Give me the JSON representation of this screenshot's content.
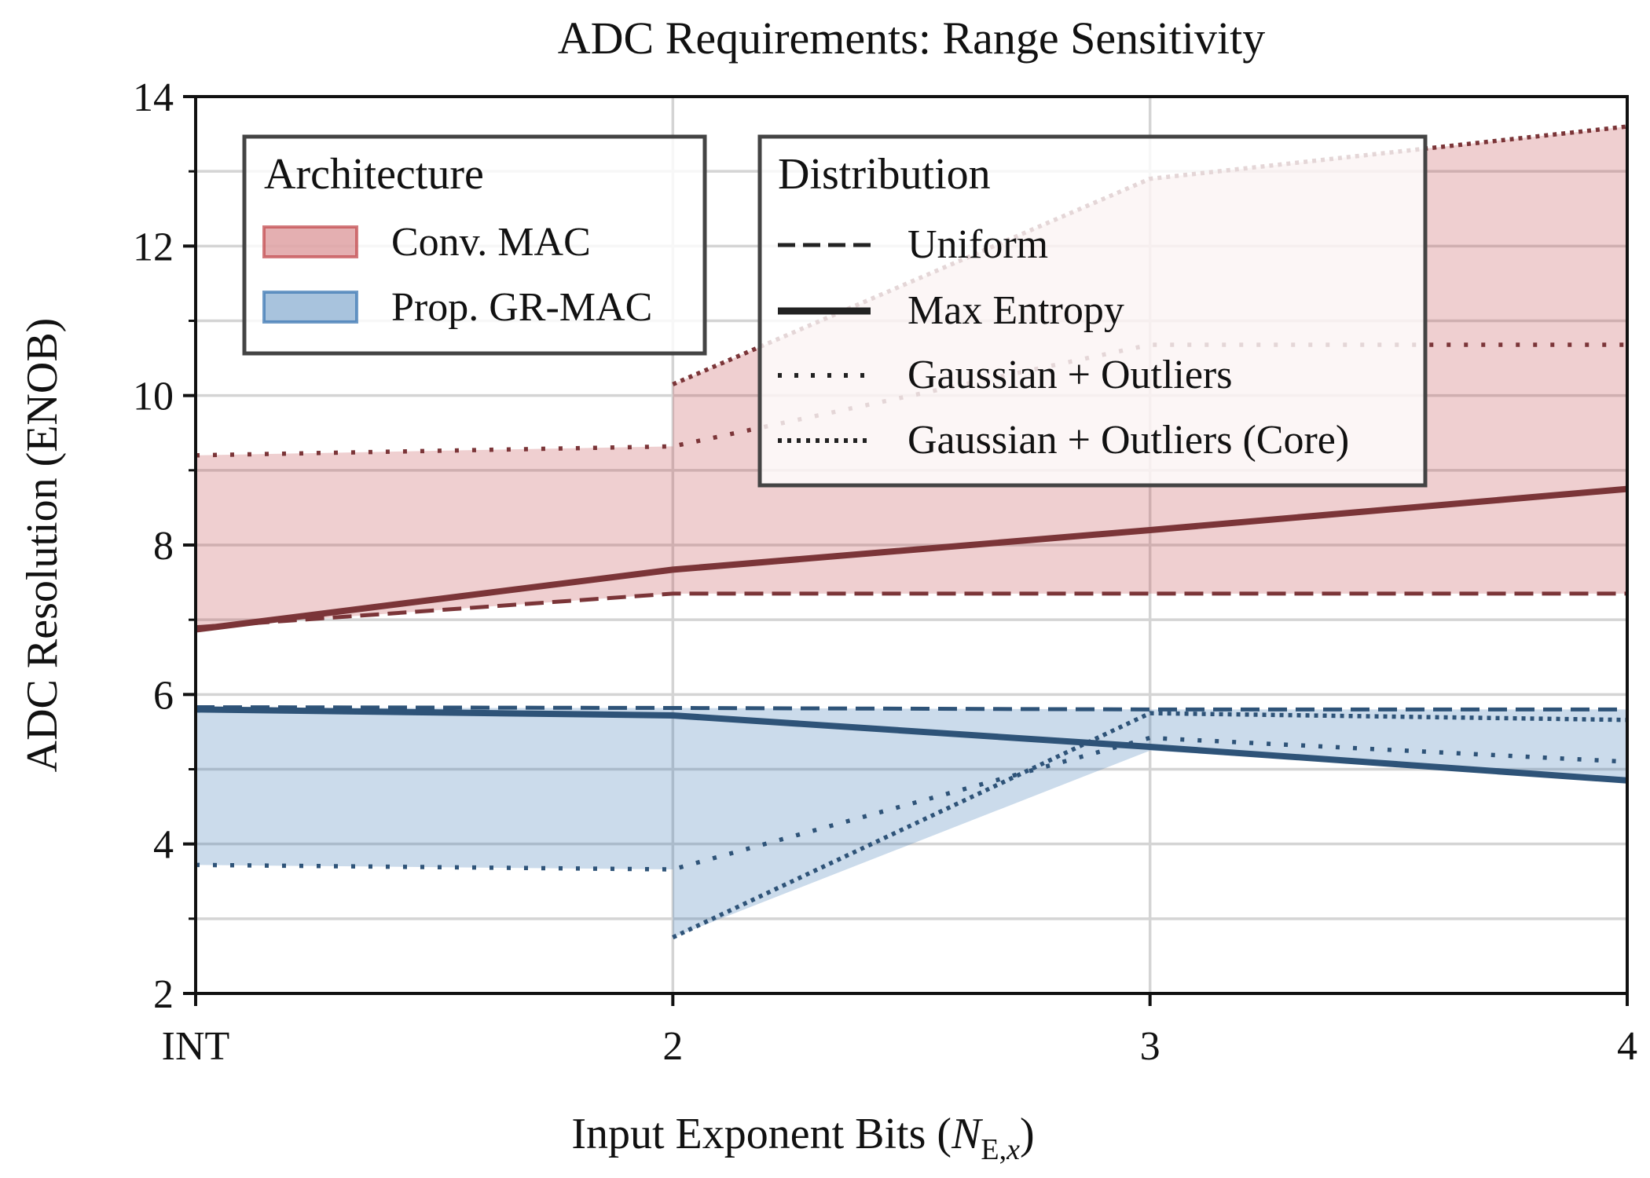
{
  "chart_data": {
    "type": "line",
    "title": "ADC Requirements: Range Sensitivity",
    "xlabel": {
      "main": "Input Exponent Bits (",
      "var": "N",
      "sub": "E,",
      "sub_var": "x",
      "close": ")"
    },
    "ylabel": "ADC Resolution (ENOB)",
    "categories": [
      "INT",
      "2",
      "3",
      "4"
    ],
    "x": [
      0,
      1,
      2,
      3
    ],
    "xlim": [
      0,
      3
    ],
    "ylim": [
      2,
      14
    ],
    "yticks": [
      "2",
      "4",
      "6",
      "8",
      "10",
      "12",
      "14"
    ],
    "ytick_values": [
      2,
      4,
      6,
      8,
      10,
      12,
      14
    ],
    "yminor": [
      3,
      5,
      7,
      9,
      11,
      13
    ],
    "grid": true,
    "legends": [
      {
        "title": "Architecture",
        "placement": "upper-left",
        "entries": [
          {
            "label": "Conv. MAC",
            "kind": "patch",
            "color": "#c44e52"
          },
          {
            "label": "Prop. GR-MAC",
            "kind": "patch",
            "color": "#3f7ab4"
          }
        ]
      },
      {
        "title": "Distribution",
        "placement": "upper-center",
        "entries": [
          {
            "label": "Uniform",
            "kind": "line",
            "style": "dashed"
          },
          {
            "label": "Max Entropy",
            "kind": "line",
            "style": "solid"
          },
          {
            "label": "Gaussian + Outliers",
            "kind": "line",
            "style": "dotted"
          },
          {
            "label": "Gaussian + Outliers (Core)",
            "kind": "line",
            "style": "dense-dotted"
          }
        ]
      }
    ],
    "architectures": [
      {
        "name": "Conv. MAC",
        "line_color": "#7b3538",
        "fill_color": "#c44e52",
        "band_segments": [
          {
            "x": [
              0,
              1
            ],
            "lower": [
              6.9,
              7.35
            ],
            "upper": [
              9.2,
              9.32
            ]
          },
          {
            "x": [
              1,
              2,
              3
            ],
            "lower": [
              7.35,
              7.35,
              7.35
            ],
            "upper": [
              10.15,
              12.9,
              13.6
            ]
          }
        ],
        "series": [
          {
            "name": "Uniform",
            "style": "dashed",
            "x": [
              0,
              1,
              2,
              3
            ],
            "values": [
              6.9,
              7.35,
              7.35,
              7.35
            ]
          },
          {
            "name": "Max Entropy",
            "style": "solid",
            "x": [
              0,
              1,
              2,
              3
            ],
            "values": [
              6.87,
              7.67,
              8.2,
              8.75
            ]
          },
          {
            "name": "Gaussian + Outliers",
            "style": "dotted",
            "x": [
              0,
              1,
              2,
              3
            ],
            "values": [
              9.2,
              9.32,
              10.68,
              10.68
            ]
          },
          {
            "name": "Gaussian + Outliers (Core)",
            "style": "dense-dotted",
            "x": [
              1,
              2,
              3
            ],
            "values": [
              10.15,
              12.9,
              13.6
            ]
          }
        ]
      },
      {
        "name": "Prop. GR-MAC",
        "line_color": "#2e5378",
        "fill_color": "#3f7ab4",
        "band_segments": [
          {
            "x": [
              0,
              1
            ],
            "lower": [
              3.72,
              3.66
            ],
            "upper": [
              5.82,
              5.82
            ]
          },
          {
            "x": [
              1,
              2,
              3
            ],
            "lower": [
              2.75,
              5.25,
              4.85
            ],
            "upper": [
              5.82,
              5.8,
              5.8
            ]
          }
        ],
        "series": [
          {
            "name": "Uniform",
            "style": "dashed",
            "x": [
              0,
              1,
              2,
              3
            ],
            "values": [
              5.83,
              5.82,
              5.8,
              5.8
            ]
          },
          {
            "name": "Max Entropy",
            "style": "solid",
            "x": [
              0,
              1,
              2,
              3
            ],
            "values": [
              5.8,
              5.72,
              5.3,
              4.85
            ]
          },
          {
            "name": "Gaussian + Outliers",
            "style": "dotted",
            "x": [
              0,
              1,
              2,
              3
            ],
            "values": [
              3.72,
              3.66,
              5.42,
              5.1
            ]
          },
          {
            "name": "Gaussian + Outliers (Core)",
            "style": "dense-dotted",
            "x": [
              1,
              2,
              3
            ],
            "values": [
              2.75,
              5.75,
              5.66
            ]
          }
        ]
      }
    ]
  }
}
